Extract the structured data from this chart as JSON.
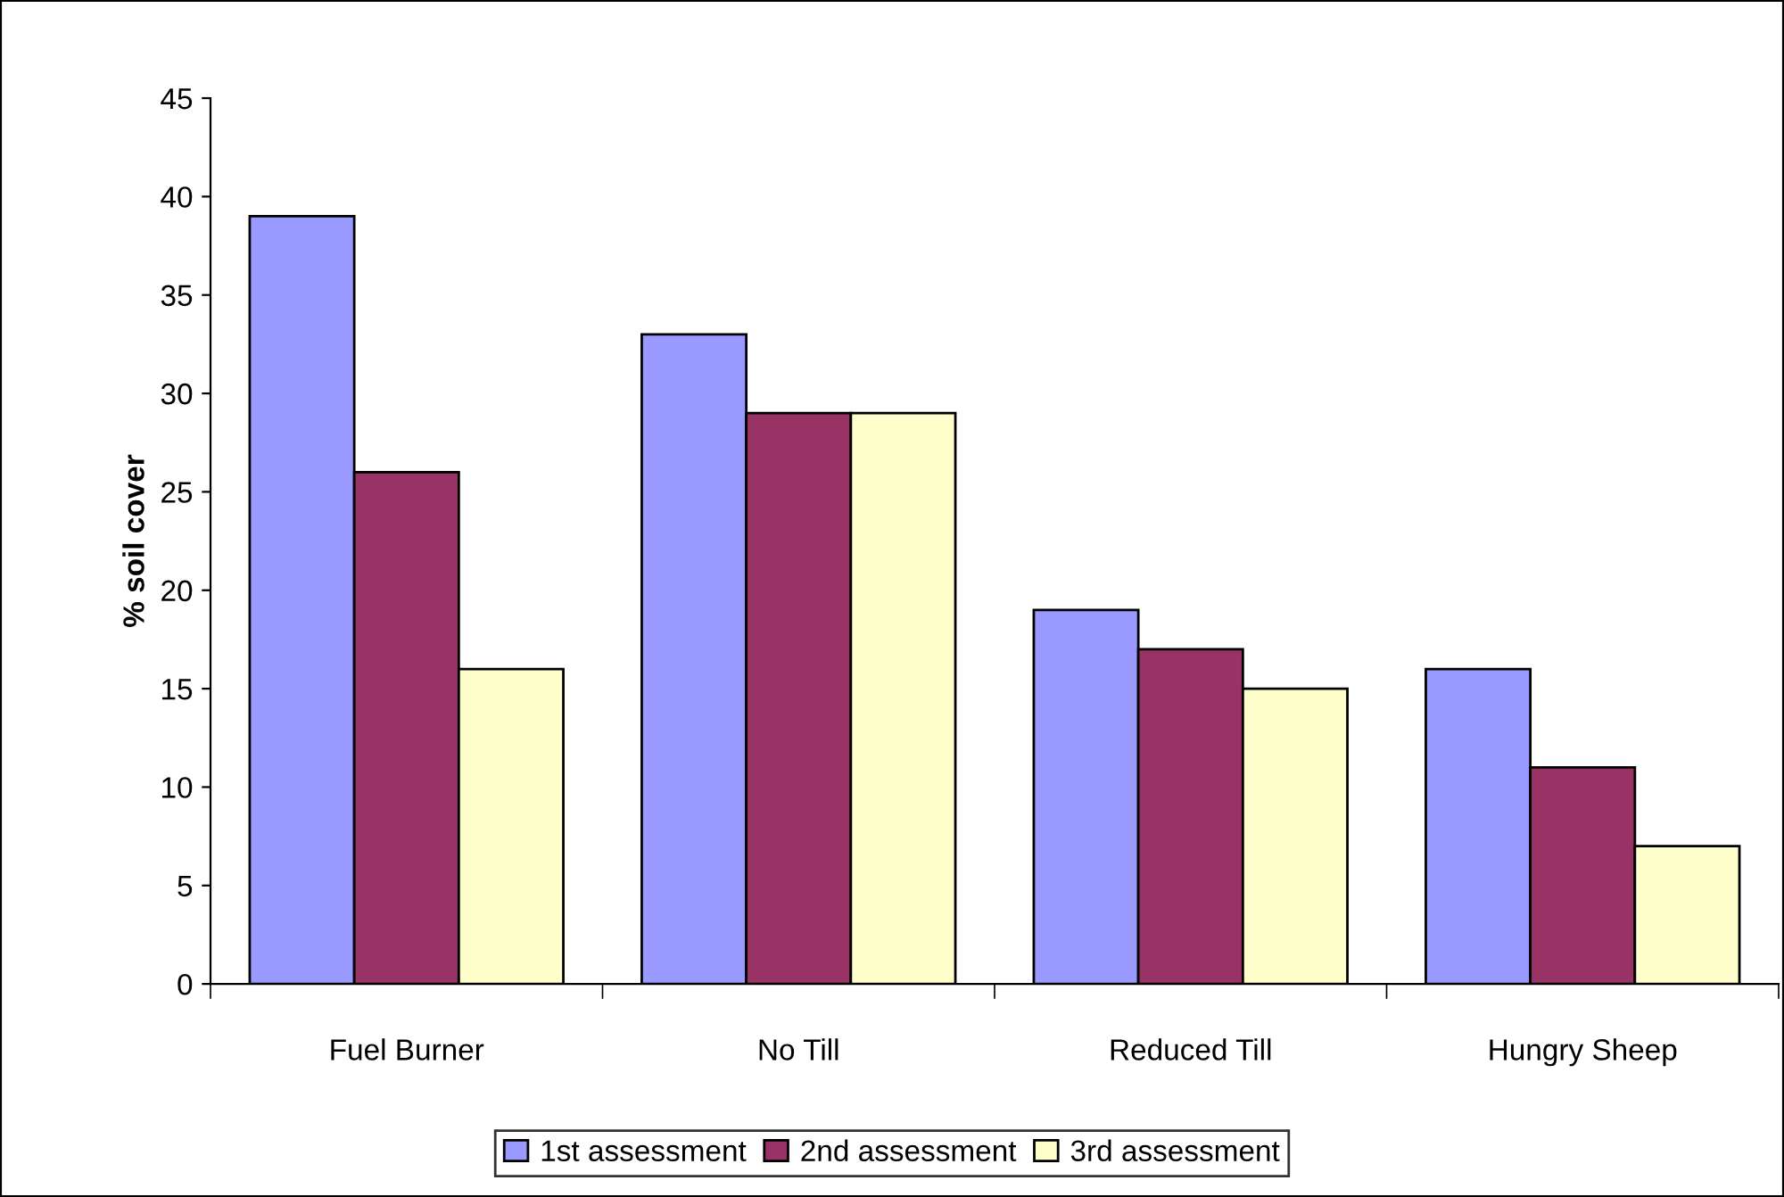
{
  "chart_data": {
    "type": "bar",
    "ylabel": "% soil cover",
    "categories": [
      "Fuel Burner",
      "No Till",
      "Reduced Till",
      "Hungry Sheep"
    ],
    "series": [
      {
        "name": "1st assessment",
        "color": "#9999ff",
        "values": [
          39,
          33,
          19,
          16
        ]
      },
      {
        "name": "2nd assessment",
        "color": "#993366",
        "values": [
          26,
          29,
          17,
          11
        ]
      },
      {
        "name": "3rd assessment",
        "color": "#ffffcc",
        "values": [
          16,
          29,
          15,
          7
        ]
      }
    ],
    "ylim": [
      0,
      45
    ],
    "yticks": [
      0,
      5,
      10,
      15,
      20,
      25,
      30,
      35,
      40,
      45
    ],
    "grid": false,
    "legend": "bottom"
  }
}
